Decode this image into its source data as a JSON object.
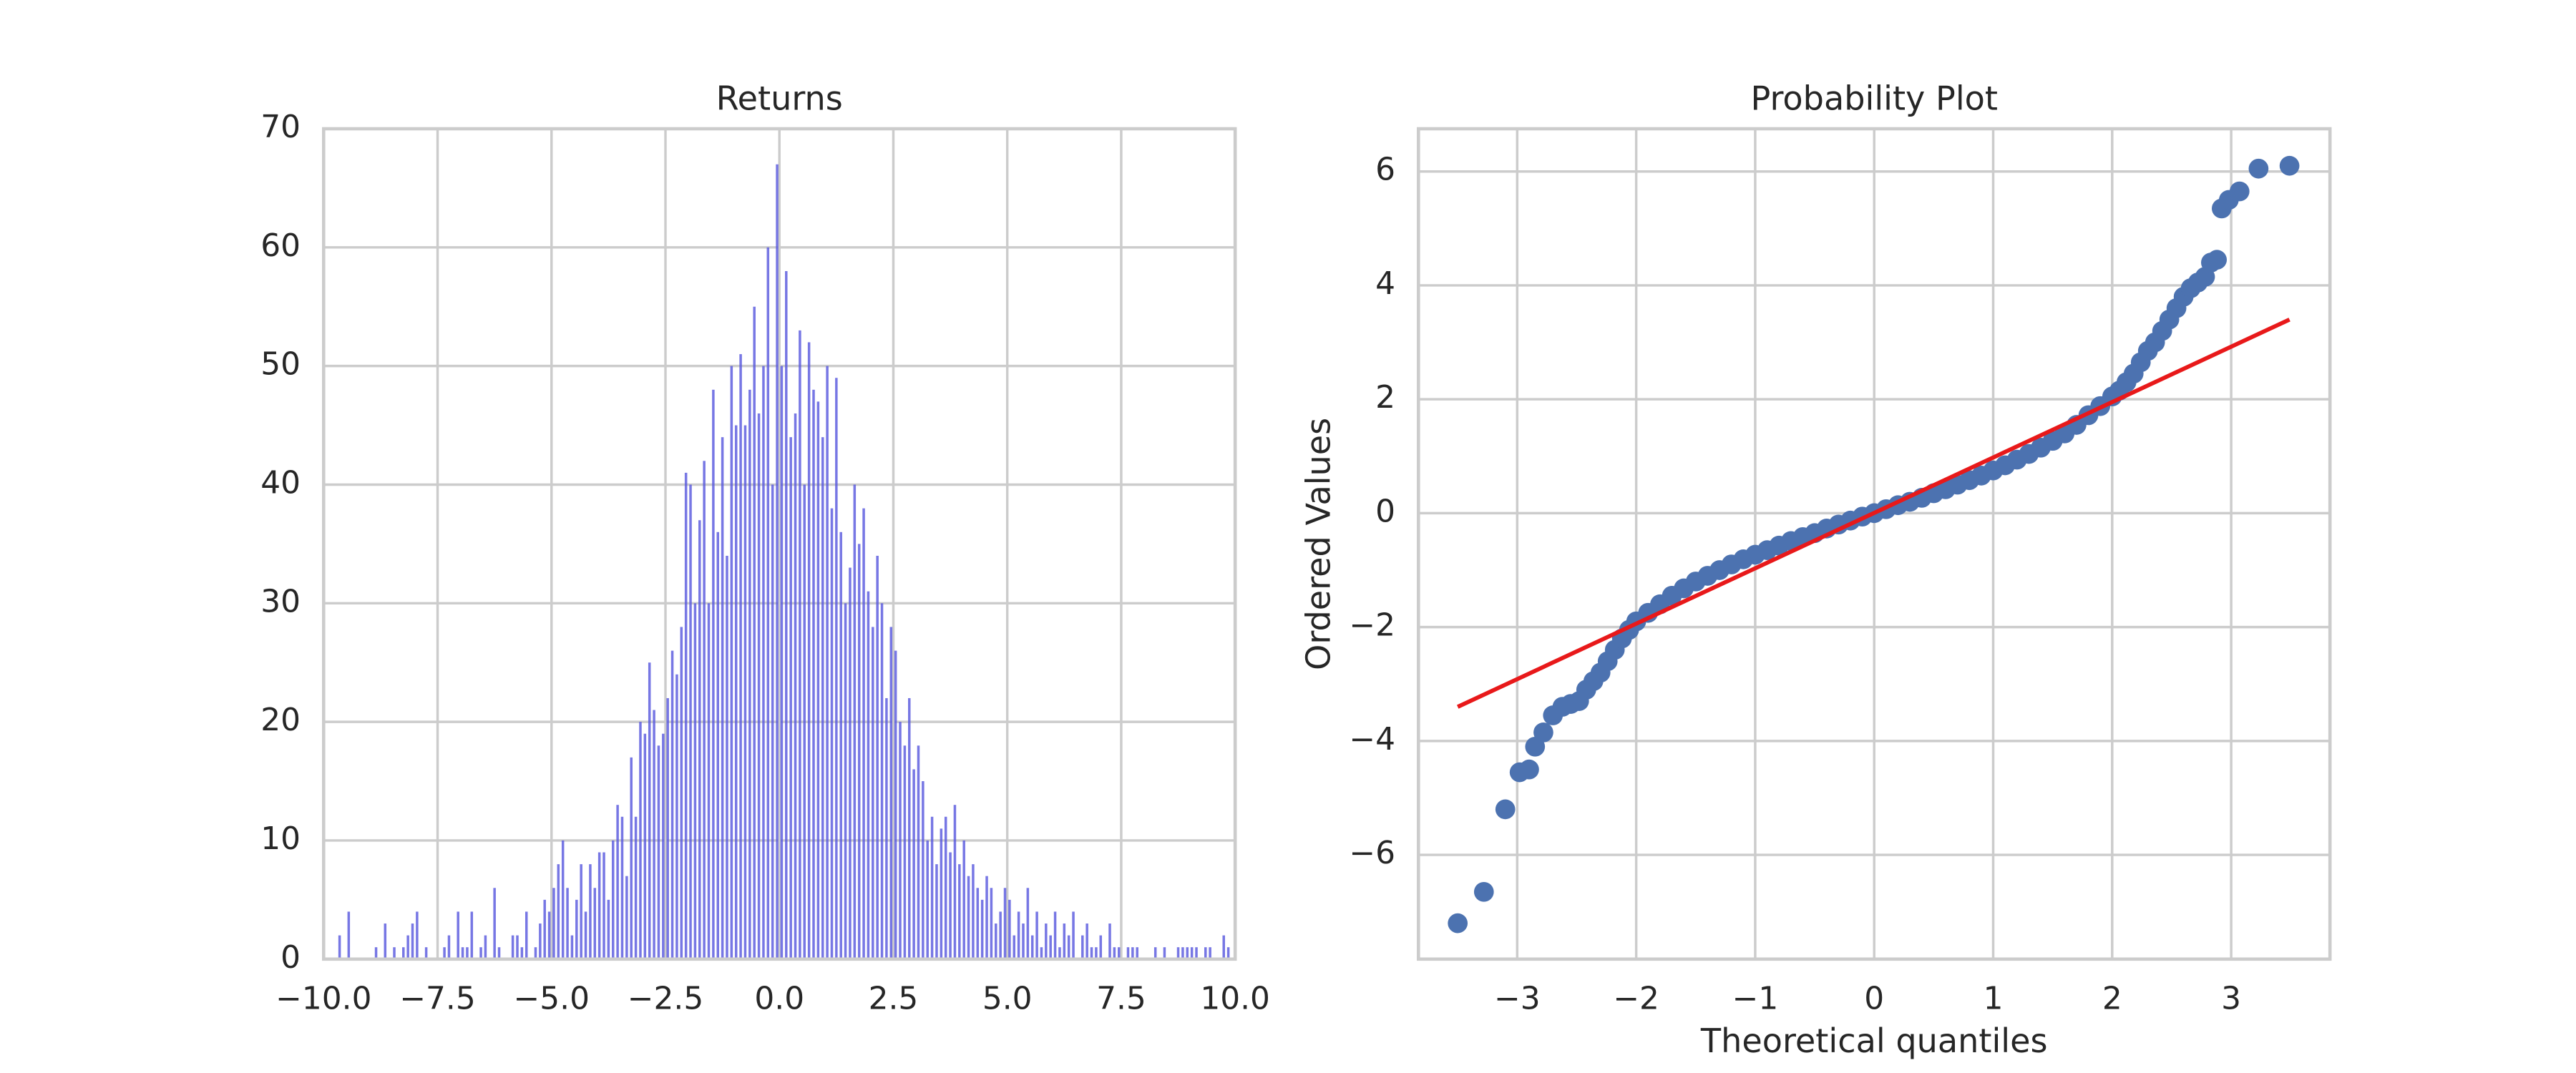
{
  "chart_data": [
    {
      "type": "histogram",
      "title": "Returns",
      "color": "#5555dd",
      "bins": [
        -10,
        -9.9,
        -9.8,
        -9.7,
        -9.6,
        -9.5,
        -9.4,
        -9.3,
        -9.2,
        -9.1,
        -9,
        -8.9,
        -8.8,
        -8.7,
        -8.6,
        -8.5,
        -8.4,
        -8.3,
        -8.2,
        -8.1,
        -8,
        -7.9,
        -7.8,
        -7.7,
        -7.6,
        -7.5,
        -7.4,
        -7.3,
        -7.2,
        -7.1,
        -7,
        -6.9,
        -6.8,
        -6.7,
        -6.6,
        -6.5,
        -6.4,
        -6.3,
        -6.2,
        -6.1,
        -6,
        -5.9,
        -5.8,
        -5.7,
        -5.6,
        -5.5,
        -5.4,
        -5.3,
        -5.2,
        -5.1,
        -5,
        -4.9,
        -4.8,
        -4.7,
        -4.6,
        -4.5,
        -4.4,
        -4.3,
        -4.2,
        -4.1,
        -4,
        -3.9,
        -3.8,
        -3.7,
        -3.6,
        -3.5,
        -3.4,
        -3.3,
        -3.2,
        -3.1,
        -3,
        -2.9,
        -2.8,
        -2.7,
        -2.6,
        -2.5,
        -2.4,
        -2.3,
        -2.2,
        -2.1,
        -2,
        -1.9,
        -1.8,
        -1.7,
        -1.6,
        -1.5,
        -1.4,
        -1.3,
        -1.2,
        -1.1,
        -1,
        -0.9,
        -0.8,
        -0.7,
        -0.6,
        -0.5,
        -0.4,
        -0.3,
        -0.2,
        -0.1,
        0,
        0.1,
        0.2,
        0.3,
        0.4,
        0.5,
        0.6,
        0.7,
        0.8,
        0.9,
        1,
        1.1,
        1.2,
        1.3,
        1.4,
        1.5,
        1.6,
        1.7,
        1.8,
        1.9,
        2,
        2.1,
        2.2,
        2.3,
        2.4,
        2.5,
        2.6,
        2.7,
        2.8,
        2.9,
        3,
        3.1,
        3.2,
        3.3,
        3.4,
        3.5,
        3.6,
        3.7,
        3.8,
        3.9,
        4,
        4.1,
        4.2,
        4.3,
        4.4,
        4.5,
        4.6,
        4.7,
        4.8,
        4.9,
        5,
        5.1,
        5.2,
        5.3,
        5.4,
        5.5,
        5.6,
        5.7,
        5.8,
        5.9,
        6,
        6.1,
        6.2,
        6.3,
        6.4,
        6.5,
        6.6,
        6.7,
        6.8,
        6.9,
        7,
        7.1,
        7.2,
        7.3,
        7.4,
        7.5,
        7.6,
        7.7,
        7.8,
        7.9,
        8,
        8.1,
        8.2,
        8.3,
        8.4,
        8.5,
        8.6,
        8.7,
        8.8,
        8.9,
        9,
        9.1,
        9.2,
        9.3,
        9.4,
        9.5,
        9.6,
        9.7,
        9.8,
        9.9,
        10
      ],
      "values": [
        0,
        0,
        0,
        2,
        0,
        4,
        0,
        0,
        0,
        0,
        0,
        1,
        0,
        3,
        0,
        1,
        0,
        1,
        2,
        3,
        4,
        0,
        1,
        0,
        0,
        0,
        1,
        2,
        0,
        4,
        1,
        1,
        4,
        0,
        1,
        2,
        0,
        6,
        1,
        0,
        0,
        2,
        2,
        1,
        4,
        0,
        1,
        3,
        5,
        4,
        6,
        8,
        10,
        6,
        2,
        5,
        8,
        4,
        8,
        6,
        9,
        9,
        5,
        10,
        13,
        12,
        7,
        17,
        12,
        20,
        19,
        25,
        21,
        18,
        19,
        22,
        26,
        24,
        28,
        41,
        40,
        30,
        37,
        42,
        30,
        48,
        36,
        44,
        34,
        50,
        45,
        51,
        45,
        48,
        55,
        46,
        50,
        60,
        40,
        67,
        50,
        58,
        44,
        46,
        53,
        40,
        52,
        48,
        47,
        44,
        50,
        38,
        49,
        36,
        30,
        33,
        40,
        35,
        38,
        31,
        28,
        34,
        30,
        22,
        28,
        26,
        20,
        18,
        22,
        16,
        18,
        15,
        10,
        12,
        8,
        11,
        12,
        9,
        13,
        8,
        10,
        7,
        8,
        6,
        5,
        7,
        6,
        3,
        4,
        6,
        5,
        2,
        4,
        3,
        6,
        2,
        4,
        1,
        3,
        2,
        4,
        1,
        3,
        2,
        4,
        0,
        2,
        3,
        1,
        1,
        2,
        0,
        3,
        1,
        1,
        0,
        1,
        1,
        1,
        0,
        0,
        0,
        1,
        0,
        1,
        0,
        0,
        1,
        1,
        1,
        1,
        1,
        0,
        1,
        1,
        0,
        0,
        2,
        1,
        0
      ],
      "xlim": [
        -10,
        10
      ],
      "xticks": [
        {
          "value": -10,
          "label": "−10.0"
        },
        {
          "value": -7.5,
          "label": "−7.5"
        },
        {
          "value": -5,
          "label": "−5.0"
        },
        {
          "value": -2.5,
          "label": "−2.5"
        },
        {
          "value": 0,
          "label": "0.0"
        },
        2.5,
        {
          "value": 5,
          "label": "5.0"
        },
        7.5,
        {
          "value": 10,
          "label": "10.0"
        }
      ],
      "ylim": [
        0,
        70
      ],
      "yticks": [
        0,
        10,
        20,
        30,
        40,
        50,
        60,
        70
      ],
      "grid": true
    },
    {
      "type": "scatter",
      "title": "Probability Plot",
      "xlabel": "Theoretical quantiles",
      "ylabel": "Ordered Values",
      "xlim": [
        -3.83,
        3.83
      ],
      "xticks": [
        {
          "value": -3,
          "label": "−3"
        },
        {
          "value": -2,
          "label": "−2"
        },
        {
          "value": -1,
          "label": "−1"
        },
        0,
        1,
        2,
        3
      ],
      "ylim": [
        -7.83,
        6.75
      ],
      "yticks": [
        {
          "value": -6,
          "label": "−6"
        },
        {
          "value": -4,
          "label": "−4"
        },
        {
          "value": -2,
          "label": "−2"
        },
        0,
        2,
        4,
        6
      ],
      "grid": true,
      "series": [
        {
          "type": "scatter",
          "color": "#4c72b0",
          "x": [
            -3.5,
            -3.28,
            -3.1,
            -2.98,
            -2.9,
            -2.85,
            -2.78,
            -2.7,
            -2.62,
            -2.55,
            -2.48,
            -2.42,
            -2.36,
            -2.3,
            -2.24,
            -2.18,
            -2.12,
            -2.06,
            -2,
            -1.9,
            -1.8,
            -1.7,
            -1.6,
            -1.5,
            -1.4,
            -1.3,
            -1.2,
            -1.1,
            -1,
            -0.9,
            -0.8,
            -0.7,
            -0.6,
            -0.5,
            -0.4,
            -0.3,
            -0.2,
            -0.1,
            0,
            0.1,
            0.2,
            0.3,
            0.4,
            0.5,
            0.6,
            0.7,
            0.8,
            0.9,
            1,
            1.1,
            1.2,
            1.3,
            1.4,
            1.5,
            1.6,
            1.7,
            1.8,
            1.9,
            2,
            2.06,
            2.12,
            2.18,
            2.24,
            2.3,
            2.36,
            2.42,
            2.48,
            2.54,
            2.6,
            2.66,
            2.72,
            2.78,
            2.83,
            2.88,
            2.92,
            2.98,
            3.07,
            3.23,
            3.49
          ],
          "values": [
            -7.2,
            -6.65,
            -5.2,
            -4.55,
            -4.5,
            -4.1,
            -3.85,
            -3.55,
            -3.4,
            -3.35,
            -3.3,
            -3.1,
            -2.95,
            -2.8,
            -2.6,
            -2.4,
            -2.2,
            -2.05,
            -1.9,
            -1.75,
            -1.6,
            -1.45,
            -1.32,
            -1.2,
            -1.1,
            -1,
            -0.9,
            -0.81,
            -0.73,
            -0.65,
            -0.57,
            -0.49,
            -0.42,
            -0.35,
            -0.27,
            -0.2,
            -0.13,
            -0.06,
            0,
            0.07,
            0.14,
            0.2,
            0.27,
            0.35,
            0.42,
            0.5,
            0.58,
            0.66,
            0.75,
            0.84,
            0.94,
            1.04,
            1.15,
            1.27,
            1.4,
            1.55,
            1.72,
            1.88,
            2.05,
            2.15,
            2.3,
            2.45,
            2.65,
            2.85,
            3,
            3.2,
            3.4,
            3.6,
            3.8,
            3.95,
            4.05,
            4.15,
            4.4,
            4.45,
            5.35,
            5.5,
            5.65,
            6.05,
            6.1
          ]
        },
        {
          "type": "line",
          "color": "#e8191a",
          "x": [
            -3.5,
            3.49
          ],
          "values": [
            -3.4,
            3.4
          ]
        }
      ]
    }
  ]
}
